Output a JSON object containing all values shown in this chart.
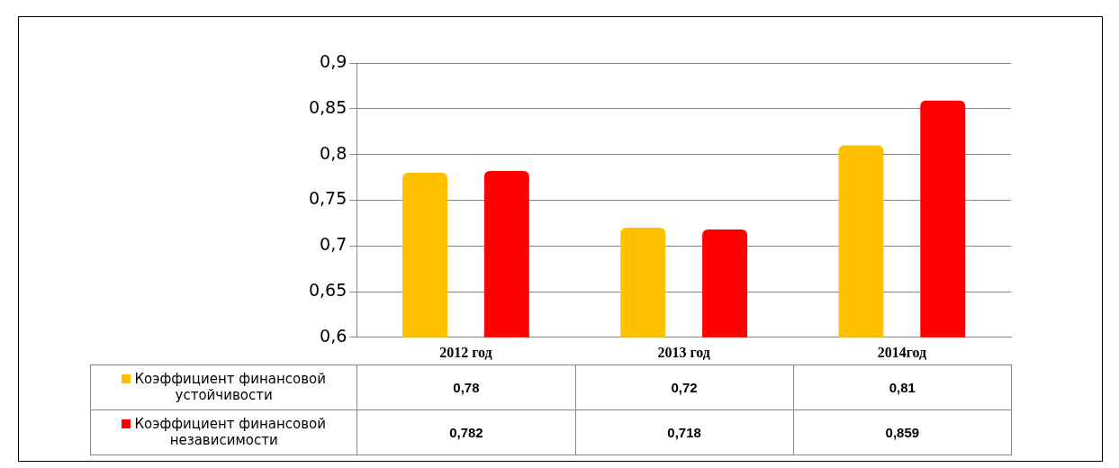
{
  "chart_data": {
    "type": "bar",
    "categories": [
      "2012 год",
      "2013 год",
      "2014год"
    ],
    "series": [
      {
        "name": "Коэффициент финансовой устойчивости",
        "color": "#ffc000",
        "values": [
          0.78,
          0.72,
          0.81
        ],
        "value_labels": [
          "0,78",
          "0,72",
          "0,81"
        ]
      },
      {
        "name": "Коэффициент финансовой независимости",
        "color": "#ff0000",
        "values": [
          0.782,
          0.718,
          0.859
        ],
        "value_labels": [
          "0,782",
          "0,718",
          "0,859"
        ]
      }
    ],
    "ylim": [
      0.6,
      0.9
    ],
    "yticks": [
      {
        "value": 0.6,
        "label": "0,6"
      },
      {
        "value": 0.65,
        "label": "0,65"
      },
      {
        "value": 0.7,
        "label": "0,7"
      },
      {
        "value": 0.75,
        "label": "0,75"
      },
      {
        "value": 0.8,
        "label": "0,8"
      },
      {
        "value": 0.85,
        "label": "0,85"
      },
      {
        "value": 0.9,
        "label": "0,9"
      }
    ],
    "grid": "y",
    "legend": "bottom"
  }
}
